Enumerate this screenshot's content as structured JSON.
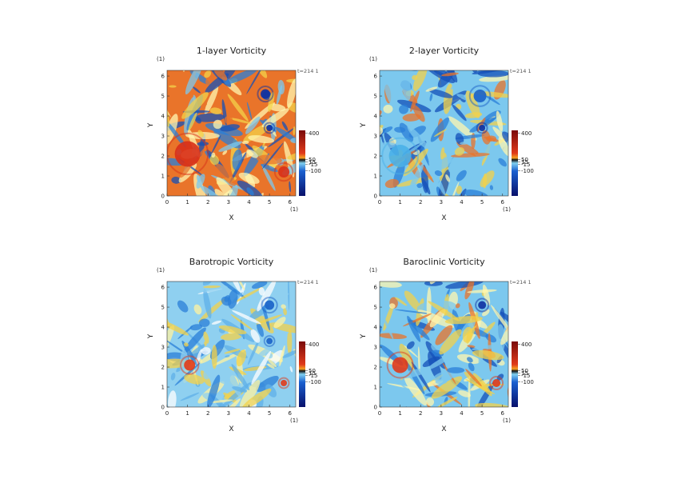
{
  "panels": [
    {
      "title": "1-layer Vorticity",
      "x_label": "X",
      "y_label": "Y",
      "x_unit": "(1)",
      "y_unit": "(1)",
      "time_label": "t=214 1",
      "xlim": [
        0,
        6.283
      ],
      "ylim": [
        0,
        6.283
      ],
      "xticks": [
        0,
        1,
        2,
        3,
        4,
        5,
        6
      ],
      "yticks": [
        0,
        1,
        2,
        3,
        4,
        5,
        6
      ],
      "colorbar": {
        "lim": [
          -440,
          440
        ],
        "ticks": [
          400,
          50,
          15,
          -15,
          -100
        ]
      }
    },
    {
      "title": "2-layer Vorticity",
      "x_label": "X",
      "y_label": "Y",
      "x_unit": "(1)",
      "y_unit": "(1)",
      "time_label": "t=214 1",
      "xlim": [
        0,
        6.283
      ],
      "ylim": [
        0,
        6.283
      ],
      "xticks": [
        0,
        1,
        2,
        3,
        4,
        5,
        6
      ],
      "yticks": [
        0,
        1,
        2,
        3,
        4,
        5,
        6
      ],
      "colorbar": {
        "lim": [
          -440,
          440
        ],
        "ticks": [
          400,
          50,
          15,
          -15,
          -100
        ]
      }
    },
    {
      "title": "Barotropic Vorticity",
      "x_label": "X",
      "y_label": "Y",
      "x_unit": "(1)",
      "y_unit": "(1)",
      "time_label": "t=214 1",
      "xlim": [
        0,
        6.283
      ],
      "ylim": [
        0,
        6.283
      ],
      "xticks": [
        0,
        1,
        2,
        3,
        4,
        5,
        6
      ],
      "yticks": [
        0,
        1,
        2,
        3,
        4,
        5,
        6
      ],
      "colorbar": {
        "lim": [
          -440,
          440
        ],
        "ticks": [
          400,
          50,
          15,
          -15,
          -100
        ]
      }
    },
    {
      "title": "Baroclinic Vorticity",
      "x_label": "X",
      "y_label": "Y",
      "x_unit": "(1)",
      "y_unit": "(1)",
      "time_label": "t=214 1",
      "xlim": [
        0,
        6.283
      ],
      "ylim": [
        0,
        6.283
      ],
      "xticks": [
        0,
        1,
        2,
        3,
        4,
        5,
        6
      ],
      "yticks": [
        0,
        1,
        2,
        3,
        4,
        5,
        6
      ],
      "colorbar": {
        "lim": [
          -440,
          440
        ],
        "ticks": [
          400,
          50,
          15,
          -15,
          -100
        ]
      }
    }
  ]
}
